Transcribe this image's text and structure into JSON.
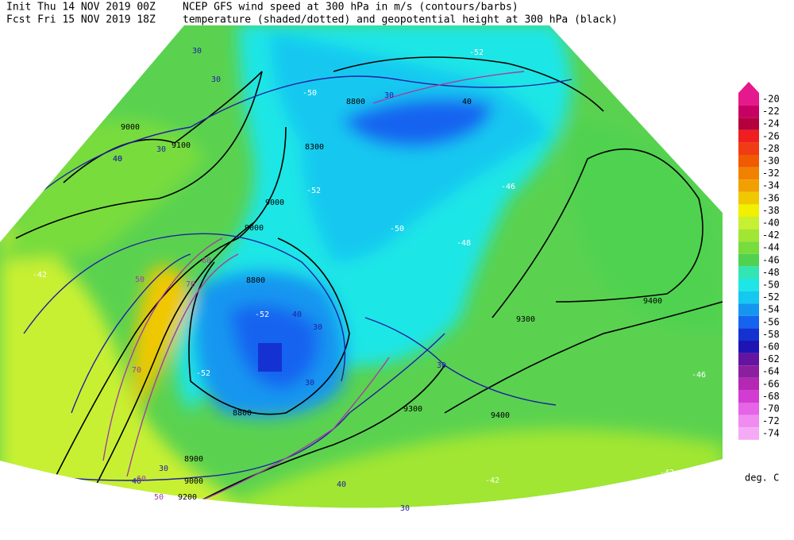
{
  "header": {
    "init": "Init  Thu 14 NOV 2019 00Z",
    "fcst": "Fcst Fri 15 NOV 2019 18Z",
    "line1": "NCEP GFS wind speed at 300 hPa in m/s (contours/barbs)",
    "line2": "temperature (shaded/dotted) and geopotential height at 300 hPa (black)"
  },
  "legend": {
    "labels": [
      "-20",
      "-22",
      "-24",
      "-26",
      "-28",
      "-30",
      "-32",
      "-34",
      "-36",
      "-38",
      "-40",
      "-42",
      "-44",
      "-46",
      "-48",
      "-50",
      "-52",
      "-54",
      "-56",
      "-58",
      "-60",
      "-62",
      "-64",
      "-66",
      "-68",
      "-70",
      "-72",
      "-74"
    ],
    "colors": [
      "#e6198c",
      "#c80064",
      "#b4003c",
      "#f01e1e",
      "#f03c14",
      "#f05a00",
      "#f08200",
      "#f0a000",
      "#f0c800",
      "#f0f000",
      "#c8f032",
      "#a0e632",
      "#78dc3c",
      "#50d250",
      "#32e6b4",
      "#1ee6e6",
      "#14c8f0",
      "#1496f0",
      "#1464f0",
      "#1432d2",
      "#1e14b4",
      "#6414a0",
      "#8c1ea0",
      "#b428b4",
      "#d23cd2",
      "#e664e6",
      "#f08cf0",
      "#f5aaf5"
    ],
    "unit": "deg. C"
  },
  "map": {
    "labels": [
      "30",
      "30",
      "8800",
      "30",
      "40",
      "-50",
      "-52",
      "40",
      "8300",
      "9000",
      "-52",
      "9100",
      "9000",
      "40",
      "30",
      "9000",
      "8800",
      "-52",
      "30",
      "40",
      "-50",
      "9300",
      "9400",
      "-48",
      "-46",
      "-52",
      "8800",
      "30",
      "8900",
      "9000",
      "9200",
      "30",
      "40",
      "50",
      "60",
      "70",
      "70",
      "60",
      "50",
      "-42",
      "-42",
      "-46",
      "-42",
      "9400",
      "30",
      "40",
      "30",
      "9300"
    ]
  }
}
